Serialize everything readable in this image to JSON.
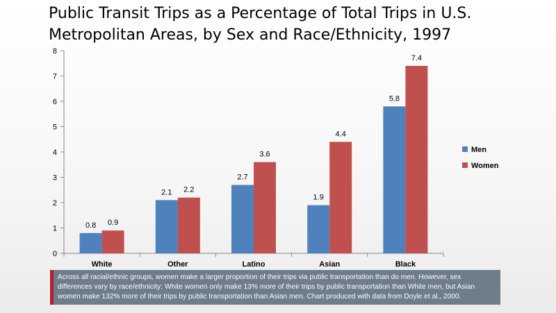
{
  "title_line1": "Public Transit Trips as a Percentage of Total Trips in U.S.",
  "title_line2": "Metropolitan Areas, by Sex and Race/Ethnicity, 1997",
  "caption": "Across all racial/ethnic groups, women make a larger proportion of their trips via public transportation than do men. However, sex differences vary by race/ethnicity: White women only make 13% more of their trips by public transportation than White men, but Asian women make 132% more of their trips by public transportation than Asian men. Chart produced with data from Doyle et al., 2000.",
  "colors": {
    "men": "#4f81bd",
    "women": "#c0504d",
    "caption_bg": "#6d7d8a",
    "caption_accent": "#b01f2a"
  },
  "chart_data": {
    "type": "bar",
    "title": "Public Transit Trips as a Percentage of Total Trips in U.S. Metropolitan Areas, by Sex and Race/Ethnicity, 1997",
    "categories": [
      "White",
      "Other",
      "Latino",
      "Asian",
      "Black"
    ],
    "series": [
      {
        "name": "Men",
        "values": [
          0.8,
          2.1,
          2.7,
          1.9,
          5.8
        ]
      },
      {
        "name": "Women",
        "values": [
          0.9,
          2.2,
          3.6,
          4.4,
          7.4
        ]
      }
    ],
    "data_labels": [
      [
        "0.8",
        "2.1",
        "2.7",
        "1.9",
        "5.8"
      ],
      [
        "0.9",
        "2.2",
        "3.6",
        "4.4",
        "7.4"
      ]
    ],
    "yticks": [
      "0",
      "1",
      "2",
      "3",
      "4",
      "5",
      "6",
      "7",
      "8"
    ],
    "ylim": [
      0,
      8
    ],
    "xlabel": "",
    "ylabel": "",
    "grid": false,
    "legend": "right"
  }
}
